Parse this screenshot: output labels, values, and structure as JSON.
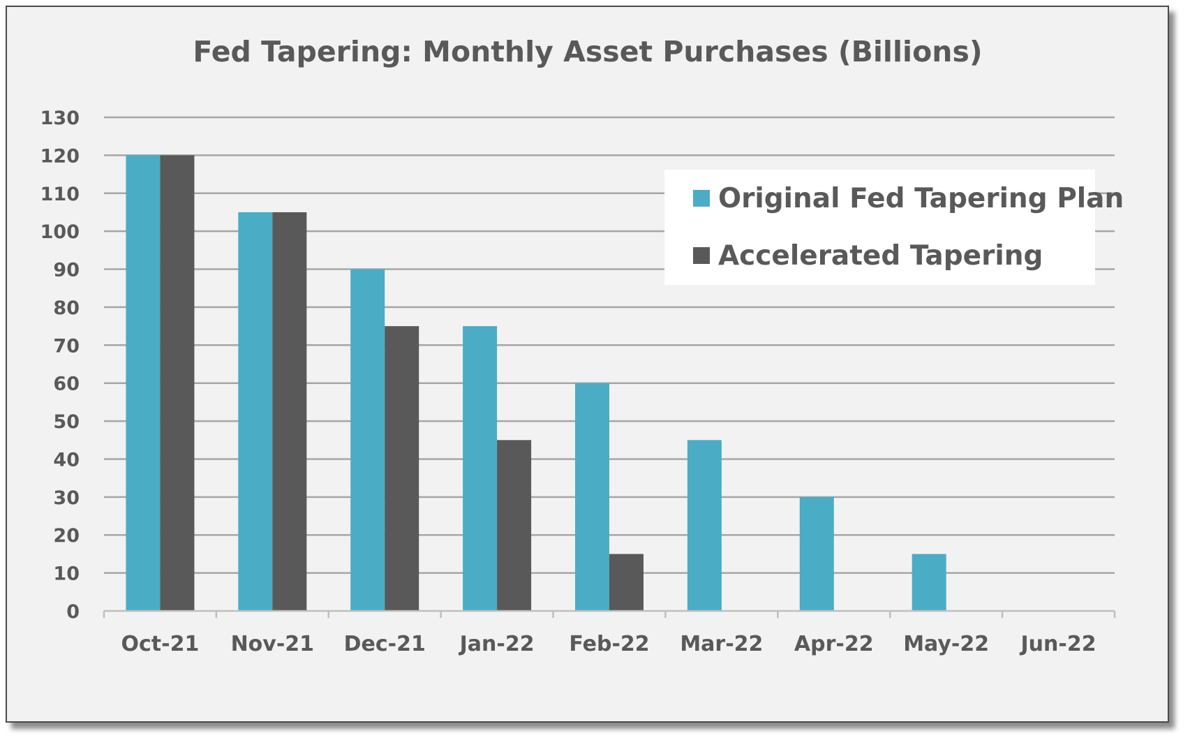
{
  "chart_data": {
    "type": "bar",
    "title": "Fed Tapering: Monthly Asset Purchases (Billions)",
    "xlabel": "",
    "ylabel": "",
    "categories": [
      "Oct-21",
      "Nov-21",
      "Dec-21",
      "Jan-22",
      "Feb-22",
      "Mar-22",
      "Apr-22",
      "May-22",
      "Jun-22"
    ],
    "series": [
      {
        "name": "Original Fed Tapering Plan",
        "color": "#4bacc6",
        "values": [
          120,
          105,
          90,
          75,
          60,
          45,
          30,
          15,
          0
        ]
      },
      {
        "name": "Accelerated Tapering",
        "color": "#595959",
        "values": [
          120,
          105,
          75,
          45,
          15,
          0,
          0,
          0,
          0
        ]
      }
    ],
    "ylim": [
      0,
      130
    ],
    "yticks": [
      0,
      10,
      20,
      30,
      40,
      50,
      60,
      70,
      80,
      90,
      100,
      110,
      120,
      130
    ],
    "grid": true,
    "legend_position": "top-right"
  }
}
